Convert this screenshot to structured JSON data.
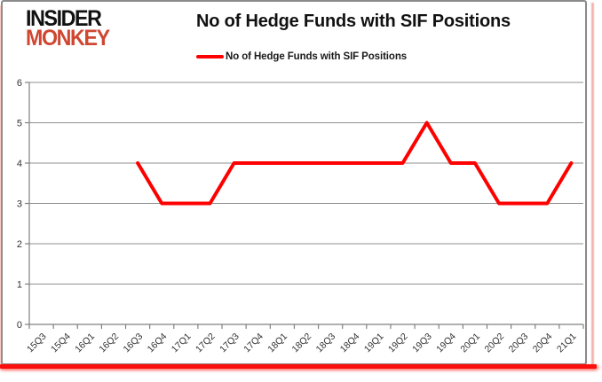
{
  "logo": {
    "line1": "INSIDER",
    "line2": "MONKEY",
    "line1_color": "#111111",
    "line2_color": "#cf4731"
  },
  "header": {
    "title": "No of Hedge Funds with SIF Positions"
  },
  "legend": {
    "label": "No of Hedge Funds with SIF Positions",
    "marker_color": "#fe0000"
  },
  "chart_data": {
    "type": "line",
    "title": "No of Hedge Funds with SIF Positions",
    "categories": [
      "15Q3",
      "15Q4",
      "16Q1",
      "16Q2",
      "16Q3",
      "16Q4",
      "17Q1",
      "17Q2",
      "17Q3",
      "17Q4",
      "18Q1",
      "18Q2",
      "18Q3",
      "18Q4",
      "19Q1",
      "19Q2",
      "19Q3",
      "19Q4",
      "20Q1",
      "20Q2",
      "20Q3",
      "20Q4",
      "21Q1"
    ],
    "series": [
      {
        "name": "No of Hedge Funds with SIF Positions",
        "color": "#fe0000",
        "values": [
          null,
          null,
          null,
          null,
          4,
          3,
          3,
          3,
          4,
          4,
          4,
          4,
          4,
          4,
          4,
          4,
          5,
          4,
          4,
          3,
          3,
          3,
          4
        ]
      }
    ],
    "xlabel": "",
    "ylabel": "",
    "ylim": [
      0,
      6
    ],
    "yticks": [
      0,
      1,
      2,
      3,
      4,
      5,
      6
    ],
    "grid": "horizontal",
    "legend_position": "top-center",
    "gridline_color": "#8f8f8f",
    "axis_color": "#808080",
    "tick_label_color": "#333333"
  },
  "frame": {
    "border_color": "#8a8a8a",
    "accent_bar_color": "#fb0f0c"
  }
}
